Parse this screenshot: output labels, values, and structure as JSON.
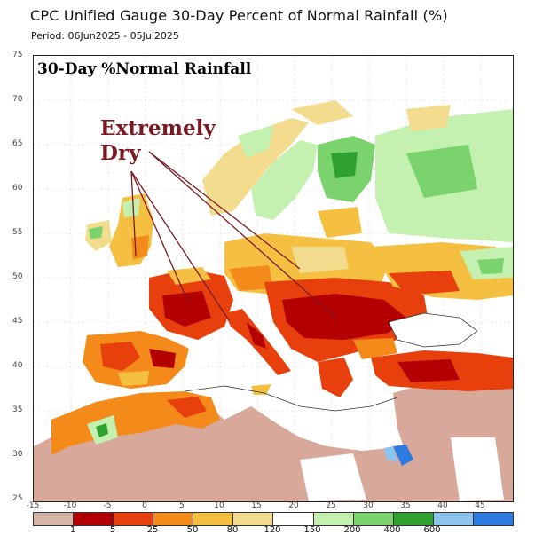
{
  "header": {
    "title": "CPC Unified Gauge 30-Day Percent of Normal Rainfall (%)",
    "period": "Period: 06Jun2025 - 05Jul2025"
  },
  "map": {
    "heading": "30-Day %Normal Rainfall",
    "annotation_line1": "Extremely",
    "annotation_line2": "Dry",
    "lat_labels": [
      "75",
      "70",
      "65",
      "60",
      "55",
      "50",
      "45",
      "40",
      "35",
      "30",
      "25"
    ],
    "lon_labels": [
      "-15",
      "-10",
      "-5",
      "0",
      "5",
      "10",
      "15",
      "20",
      "25",
      "30",
      "35",
      "40",
      "45"
    ]
  },
  "legend": {
    "breaks": [
      "1",
      "5",
      "25",
      "50",
      "80",
      "120",
      "150",
      "200",
      "400",
      "600"
    ],
    "colors": [
      "#d6b4a6",
      "#b30000",
      "#e8400c",
      "#f48a1a",
      "#f5c042",
      "#f4dc8f",
      "#ffffff",
      "#c4f0b0",
      "#7ad36c",
      "#2fa12f",
      "#8cc4f0",
      "#2c7be0"
    ]
  },
  "colors": {
    "ocean": "#ffffff",
    "annotation": "#7a1a22",
    "desert": "#d8a99a"
  }
}
